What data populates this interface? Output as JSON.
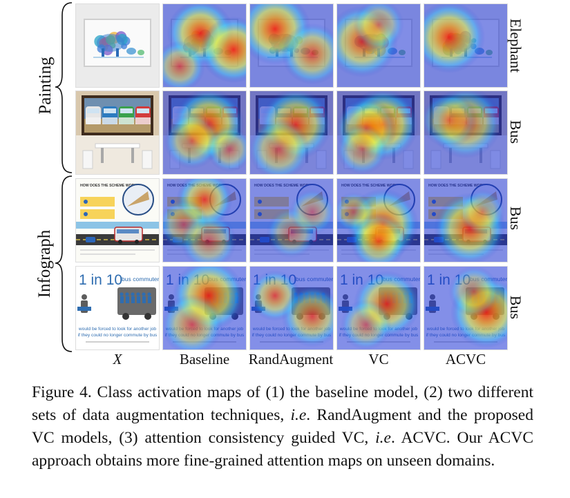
{
  "figure": {
    "groups": [
      {
        "label": "Painting",
        "rows": [
          0,
          1
        ]
      },
      {
        "label": "Infograph",
        "rows": [
          2,
          3
        ]
      }
    ],
    "columns": [
      "X",
      "Baseline",
      "RandAugment",
      "VC",
      "ACVC"
    ],
    "rows": [
      {
        "class_label": "Elephant",
        "image_kind": "elephant-painting",
        "heat": {
          "Baseline": [
            [
              0.45,
              0.35,
              0.9,
              1.0
            ],
            [
              0.85,
              0.55,
              0.9,
              1.0
            ],
            [
              0.2,
              0.75,
              0.6,
              0.7
            ]
          ],
          "RandAugment": [
            [
              0.3,
              0.3,
              1.0,
              1.0
            ],
            [
              0.75,
              0.6,
              0.8,
              0.8
            ]
          ],
          "VC": [
            [
              0.3,
              0.45,
              1.0,
              0.9
            ],
            [
              0.5,
              0.25,
              0.6,
              0.6
            ]
          ],
          "ACVC": [
            [
              0.3,
              0.4,
              1.0,
              1.0
            ]
          ]
        }
      },
      {
        "class_label": "Bus",
        "image_kind": "bus-painting",
        "heat": {
          "Baseline": [
            [
              0.55,
              0.4,
              1.0,
              1.0
            ],
            [
              0.35,
              0.6,
              0.7,
              0.7
            ],
            [
              0.8,
              0.7,
              0.5,
              0.6
            ]
          ],
          "RandAugment": [
            [
              0.55,
              0.4,
              1.0,
              0.9
            ],
            [
              0.35,
              0.7,
              0.8,
              0.7
            ]
          ],
          "VC": [
            [
              0.55,
              0.4,
              1.0,
              1.0
            ],
            [
              0.35,
              0.45,
              0.8,
              0.8
            ],
            [
              0.3,
              0.7,
              0.6,
              0.6
            ]
          ],
          "ACVC": [
            [
              0.5,
              0.38,
              1.0,
              0.8
            ],
            [
              0.3,
              0.35,
              0.7,
              0.6
            ]
          ]
        }
      },
      {
        "class_label": "Bus",
        "image_kind": "bus-infographic",
        "heat": {
          "Baseline": [
            [
              0.5,
              0.25,
              0.7,
              0.9
            ],
            [
              0.25,
              0.55,
              0.6,
              0.6
            ],
            [
              0.55,
              0.75,
              0.7,
              0.6
            ]
          ],
          "RandAugment": [
            [
              0.5,
              0.65,
              0.6,
              0.5
            ],
            [
              0.75,
              0.4,
              0.5,
              0.5
            ]
          ],
          "VC": [
            [
              0.55,
              0.55,
              1.0,
              1.0
            ],
            [
              0.5,
              0.75,
              0.7,
              0.8
            ],
            [
              0.2,
              0.4,
              0.4,
              0.5
            ]
          ],
          "ACVC": [
            [
              0.55,
              0.6,
              1.0,
              0.95
            ],
            [
              0.7,
              0.4,
              0.5,
              0.5
            ]
          ]
        }
      },
      {
        "class_label": "Bus",
        "image_kind": "bus-commuters",
        "heat": {
          "Baseline": [
            [
              0.55,
              0.35,
              1.0,
              1.0
            ],
            [
              0.35,
              0.7,
              0.8,
              0.7
            ]
          ],
          "RandAugment": [
            [
              0.3,
              0.35,
              0.6,
              0.8
            ],
            [
              0.75,
              0.6,
              0.8,
              0.8
            ]
          ],
          "VC": [
            [
              0.6,
              0.45,
              0.9,
              0.9
            ],
            [
              0.35,
              0.7,
              0.6,
              0.6
            ]
          ],
          "ACVC": [
            [
              0.75,
              0.55,
              1.0,
              1.0
            ],
            [
              0.6,
              0.3,
              0.6,
              0.6
            ]
          ]
        }
      }
    ],
    "infograph_title": "HOW DOES THE SCHEME WORK?",
    "commuters": {
      "big": "1 in 10",
      "word": "bus commuters",
      "line1": "would be forced to look for another job",
      "line2": "if they could no longer commute by bus"
    },
    "caption": {
      "prefix": "Figure 4. Class activation maps of (1) the baseline model, (2) two different sets of data augmentation techniques, ",
      "ie1": "i.e",
      "mid": ". RandAugment and the proposed VC models, (3) attention consistency guided VC, ",
      "ie2": "i.e",
      "suffix": ". ACVC. Our ACVC approach obtains more fine-grained attention maps on unseen domains."
    }
  }
}
